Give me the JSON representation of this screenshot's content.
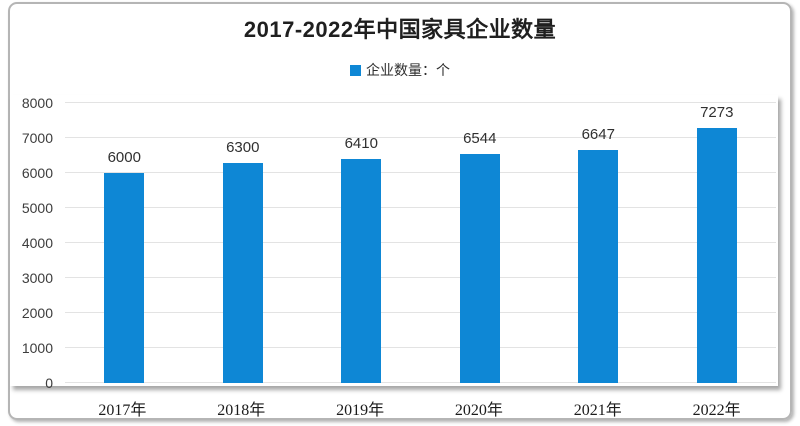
{
  "chart_data": {
    "type": "bar",
    "title": "2017-2022年中国家具企业数量",
    "legend_label": "企业数量：个",
    "legend_position": "top",
    "categories": [
      "2017年",
      "2018年",
      "2019年",
      "2020年",
      "2021年",
      "2022年"
    ],
    "values": [
      6000,
      6300,
      6410,
      6544,
      6647,
      7273
    ],
    "xlabel": "",
    "ylabel": "",
    "ylim": [
      0,
      8000
    ],
    "yticks": [
      0,
      1000,
      2000,
      3000,
      4000,
      5000,
      6000,
      7000,
      8000
    ],
    "grid": true,
    "data_labels": true,
    "bar_color": "#0e87d5"
  },
  "colors": {
    "bar": "#0e87d5",
    "gridline": "#e3e3e3",
    "title_text": "#1f1f1f",
    "axis_text": "#3d3d3d",
    "frame_border": "#b5b5b5"
  }
}
